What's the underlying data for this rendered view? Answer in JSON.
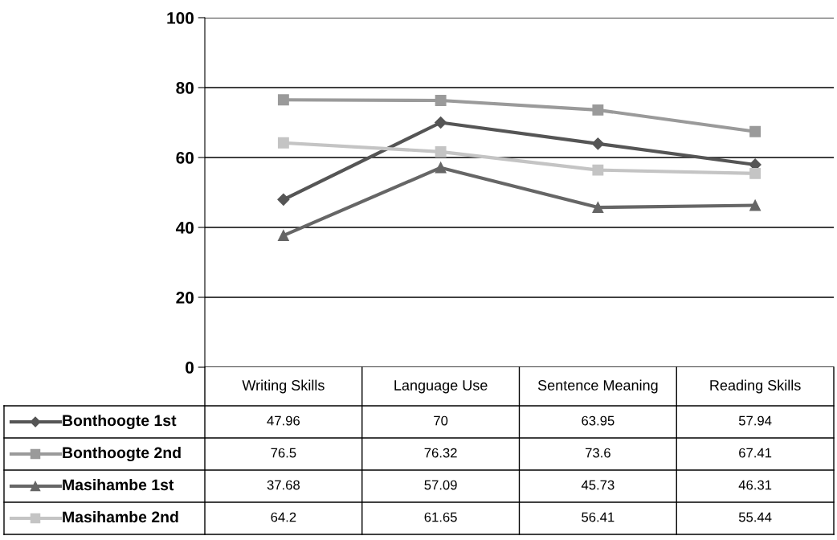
{
  "chart_data": {
    "type": "line",
    "categories": [
      "Writing Skills",
      "Language Use",
      "Sentence Meaning",
      "Reading Skills"
    ],
    "series": [
      {
        "name": "Bonthoogte 1st",
        "color": "#555555",
        "marker": "diamond",
        "values": [
          47.96,
          70,
          63.95,
          57.94
        ]
      },
      {
        "name": "Bonthoogte 2nd",
        "color": "#9a9a9a",
        "marker": "square",
        "values": [
          76.5,
          76.32,
          73.6,
          67.41
        ]
      },
      {
        "name": "Masihambe 1st",
        "color": "#666666",
        "marker": "triangle",
        "values": [
          37.68,
          57.09,
          45.73,
          46.31
        ]
      },
      {
        "name": "Masihambe 2nd",
        "color": "#c4c4c4",
        "marker": "square",
        "values": [
          64.2,
          61.65,
          56.41,
          55.44
        ]
      }
    ],
    "ylim": [
      0,
      100
    ],
    "yticks": [
      0,
      20,
      40,
      60,
      80,
      100
    ],
    "grid": "y",
    "legend": "bottom left",
    "data_labels": true
  }
}
